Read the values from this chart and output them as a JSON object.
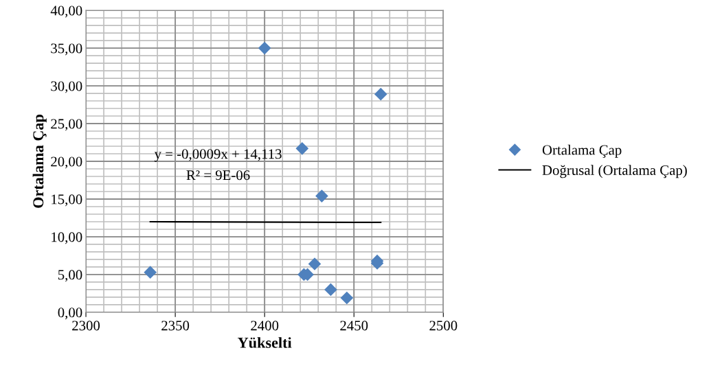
{
  "chart_data": {
    "type": "scatter",
    "xlabel": "Yükselti",
    "ylabel": "Ortalama Çap",
    "xlim": [
      2300,
      2500
    ],
    "xticks": [
      2300,
      2350,
      2400,
      2450,
      2500
    ],
    "ylim": [
      0,
      40
    ],
    "yticks": [
      {
        "value": 0,
        "label": "0,00"
      },
      {
        "value": 5,
        "label": "5,00"
      },
      {
        "value": 10,
        "label": "10,00"
      },
      {
        "value": 15,
        "label": "15,00"
      },
      {
        "value": 20,
        "label": "20,00"
      },
      {
        "value": 25,
        "label": "25,00"
      },
      {
        "value": 30,
        "label": "30,00"
      },
      {
        "value": 35,
        "label": "35,00"
      },
      {
        "value": 40,
        "label": "40,00"
      }
    ],
    "grid": true,
    "legend": "right",
    "annotations": [
      "y = -0,0009x + 14,113",
      "R² = 9E-06"
    ],
    "series": [
      {
        "name": "Ortalama Çap",
        "marker": "diamond",
        "color": "#4f81bd",
        "x": [
          2336,
          2400,
          2465,
          2421,
          2432,
          2428,
          2422,
          2424,
          2437,
          2446,
          2463,
          2463
        ],
        "values": [
          5.3,
          35,
          28.9,
          21.7,
          15.4,
          6.4,
          5.0,
          5.0,
          3.0,
          1.9,
          6.8,
          6.5
        ]
      },
      {
        "name": "Doğrusal (Ortalama Çap)",
        "type": "line",
        "color": "#000000",
        "x": [
          2336,
          2465
        ],
        "values": [
          12.0,
          11.9
        ],
        "marker": "none"
      }
    ]
  }
}
